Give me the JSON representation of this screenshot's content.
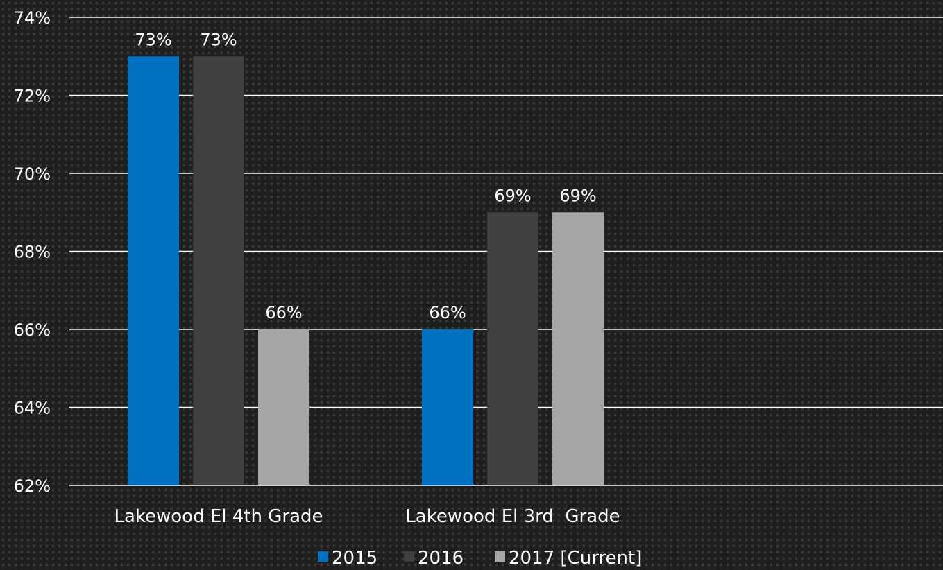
{
  "chart_data": {
    "type": "bar",
    "categories": [
      "Lakewood El 4th Grade",
      "Lakewood El 3rd  Grade"
    ],
    "series": [
      {
        "name": "2015",
        "values": [
          73,
          66
        ],
        "color": "#0070c0"
      },
      {
        "name": "2016",
        "values": [
          73,
          69
        ],
        "color": "#404040"
      },
      {
        "name": "2017 [Current]",
        "values": [
          66,
          69
        ],
        "color": "#a6a6a6"
      }
    ],
    "data_labels": [
      [
        "73%",
        "66%"
      ],
      [
        "73%",
        "69%"
      ],
      [
        "66%",
        "69%"
      ]
    ],
    "ylim": [
      62,
      74
    ],
    "y_ticks": [
      62,
      64,
      66,
      68,
      70,
      72,
      74
    ],
    "y_tick_labels": [
      "62%",
      "64%",
      "66%",
      "68%",
      "70%",
      "72%",
      "74%"
    ],
    "grid": true,
    "legend_position": "bottom",
    "title": "",
    "xlabel": "",
    "ylabel": ""
  }
}
